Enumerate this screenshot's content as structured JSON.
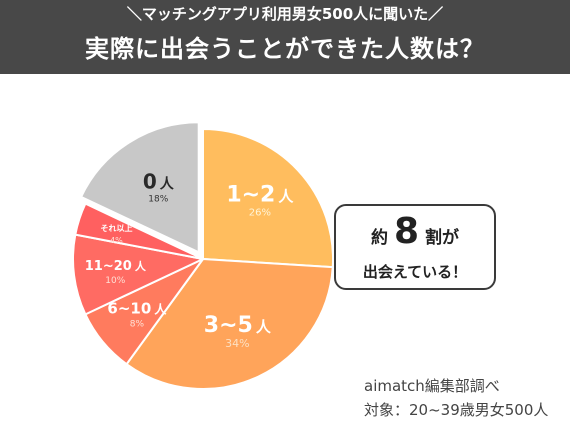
{
  "header": {
    "subtitle": "＼マッチングアプリ利用男女500人に聞いた／",
    "title": "実際に出会うことができた人数は？"
  },
  "chart_data": {
    "type": "pie",
    "slices": [
      {
        "label": "1~2",
        "unit": "人",
        "value": 26,
        "pct_label": "26%",
        "color": "#ffbd5e"
      },
      {
        "label": "3~5",
        "unit": "人",
        "value": 34,
        "pct_label": "34%",
        "color": "#ffa45a"
      },
      {
        "label": "6~10",
        "unit": "人",
        "value": 8,
        "pct_label": "8%",
        "color": "#ff7b5e"
      },
      {
        "label": "11~20",
        "unit": "人",
        "value": 10,
        "pct_label": "10%",
        "color": "#ff6b63"
      },
      {
        "label": "それ以上",
        "unit": "",
        "value": 4,
        "pct_label": "4%",
        "color": "#ff6060"
      },
      {
        "label": "0",
        "unit": "人",
        "value": 18,
        "pct_label": "18%",
        "color": "#c8c8c8"
      }
    ]
  },
  "callout": {
    "pre": "約",
    "big": "8",
    "post": "割",
    "particle": "が",
    "line2": "出会えている！"
  },
  "source": "aimatch編集部調べ",
  "target": "対象：20~39歳男女500人"
}
